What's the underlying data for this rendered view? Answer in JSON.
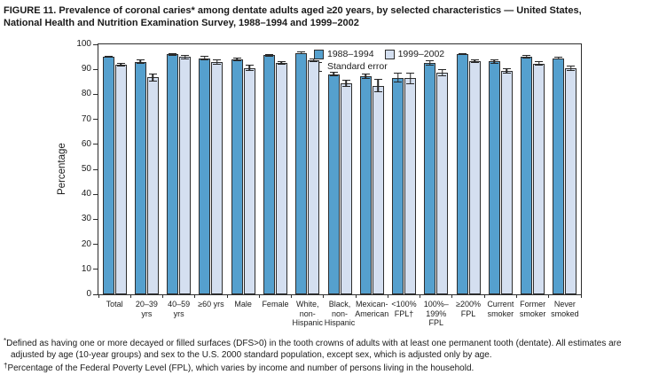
{
  "title": {
    "line1": "FIGURE 11. Prevalence of coronal caries* among dentate adults aged ≥20 years, by selected characteristics — United States,",
    "line2": "National Health and Nutrition Examination Survey, 1988–1994 and 1999–2002"
  },
  "chart_data": {
    "type": "bar",
    "title": "",
    "xlabel": "",
    "ylabel": "Percentage",
    "ylim": [
      0,
      100
    ],
    "ytick_step": 10,
    "grid": false,
    "legend_position": "top-center-inside",
    "legend_error_label": "Standard error",
    "categories": [
      "Total",
      "20–39 yrs",
      "40–59 yrs",
      "≥60 yrs",
      "Male",
      "Female",
      "White, non-Hispanic",
      "Black, non-Hispanic",
      "Mexican-American",
      "<100% FPL†",
      "100%–199% FPL",
      "≥200% FPL",
      "Current smoker",
      "Former smoker",
      "Never smoked"
    ],
    "category_label_lines": [
      [
        "Total"
      ],
      [
        "20–39",
        "yrs"
      ],
      [
        "40–59",
        "yrs"
      ],
      [
        "≥60 yrs"
      ],
      [
        "Male"
      ],
      [
        "Female"
      ],
      [
        "White,",
        "non-",
        "Hispanic"
      ],
      [
        "Black,",
        "non-",
        "Hispanic"
      ],
      [
        "Mexican-",
        "American"
      ],
      [
        "<100%",
        "FPL†"
      ],
      [
        "100%–",
        "199%",
        "FPL"
      ],
      [
        "≥200%",
        "FPL"
      ],
      [
        "Current",
        "smoker"
      ],
      [
        "Former",
        "smoker"
      ],
      [
        "Never",
        "smoked"
      ]
    ],
    "series": [
      {
        "name": "1988–1994",
        "color": "#55a0ce",
        "values": [
          95.1,
          93.0,
          96.0,
          94.5,
          94.0,
          95.6,
          96.5,
          88.0,
          87.1,
          86.7,
          92.6,
          96.2,
          93.2,
          95.0,
          94.4
        ],
        "standard_errors": [
          0.4,
          0.8,
          0.6,
          0.8,
          0.7,
          0.5,
          0.5,
          0.9,
          1.1,
          2.0,
          1.0,
          0.4,
          0.9,
          0.8,
          0.5
        ]
      },
      {
        "name": "1999–2002",
        "color": "#d4dff0",
        "values": [
          91.8,
          86.8,
          94.9,
          93.0,
          90.6,
          92.6,
          93.6,
          84.4,
          83.5,
          86.4,
          88.6,
          93.2,
          89.5,
          92.3,
          90.5
        ],
        "standard_errors": [
          0.7,
          1.6,
          0.8,
          1.1,
          1.2,
          0.8,
          0.8,
          1.3,
          2.8,
          2.4,
          1.3,
          0.8,
          1.1,
          0.9,
          1.0
        ]
      }
    ]
  },
  "footnotes": [
    {
      "marker": "*",
      "text": "Defined as having one or more decayed or filled surfaces (DFS>0) in the tooth crowns of adults with at least one permanent tooth (dentate). All estimates are adjusted by age (10-year groups) and sex to the U.S. 2000 standard population, except sex, which is adjusted only by age."
    },
    {
      "marker": "†",
      "text": "Percentage of the Federal Poverty Level (FPL), which varies by income and number of persons living in the household."
    }
  ],
  "colors": {
    "bar_1988_1994": "#55a0ce",
    "bar_1999_2002": "#d4dff0",
    "bar_border": "#2e2e2e",
    "axis": "#2d2d2d",
    "text": "#1c1c1c"
  }
}
